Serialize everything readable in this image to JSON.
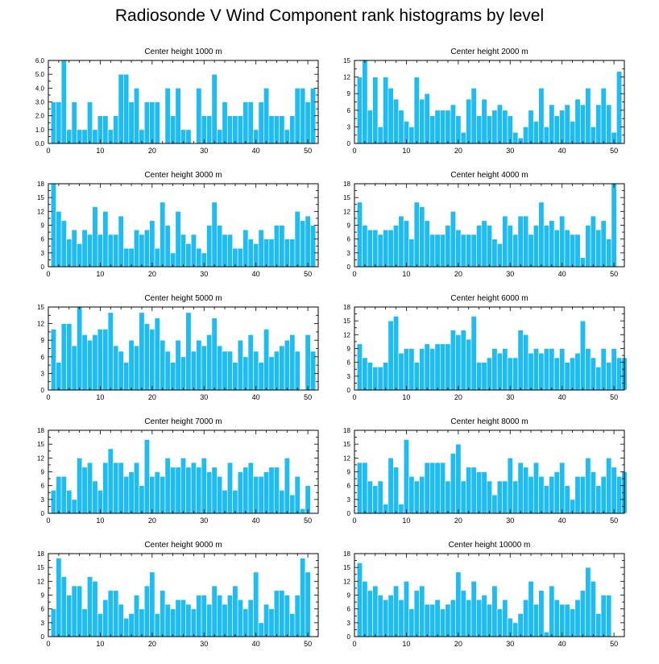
{
  "title": "Radiosonde V Wind Component rank histograms by level",
  "colors": {
    "bar": "#1ebcf0",
    "axis": "#000000"
  },
  "chart_data": [
    {
      "type": "bar",
      "title": "Center height 1000 m",
      "ylim": [
        0,
        6.0
      ],
      "yticks": [
        "0.0",
        "1.0",
        "2.0",
        "3.0",
        "4.0",
        "5.0",
        "6.0"
      ],
      "ytick_values": [
        0,
        1,
        2,
        3,
        4,
        5,
        6
      ],
      "xticks": [
        "0",
        "10",
        "20",
        "30",
        "40",
        "50"
      ],
      "xlim": [
        0,
        52
      ],
      "values": [
        3,
        3,
        6,
        1,
        3,
        1,
        1,
        3,
        1,
        2,
        2,
        1,
        2,
        5,
        5,
        3,
        4,
        1,
        3,
        3,
        3,
        0,
        4,
        2,
        4,
        1,
        1,
        0,
        4,
        2,
        2,
        5,
        1,
        3,
        2,
        2,
        2,
        3,
        3,
        1,
        3,
        4,
        2,
        2,
        2,
        1,
        2,
        4,
        4,
        3,
        4
      ]
    },
    {
      "type": "bar",
      "title": "Center height 2000 m",
      "ylim": [
        0,
        15
      ],
      "yticks": [
        "0",
        "3",
        "6",
        "9",
        "12",
        "15"
      ],
      "ytick_values": [
        0,
        3,
        6,
        9,
        12,
        15
      ],
      "xticks": [
        "0",
        "10",
        "20",
        "30",
        "40",
        "50"
      ],
      "xlim": [
        0,
        52
      ],
      "values": [
        12,
        15,
        6,
        12,
        3,
        12,
        10,
        8,
        6,
        4,
        3,
        12,
        8,
        9,
        5,
        6,
        6,
        6,
        7,
        5,
        2,
        8,
        10,
        5,
        8,
        5,
        6,
        7,
        6,
        5,
        2,
        1,
        3,
        6,
        4,
        10,
        3,
        7,
        5,
        6,
        7,
        4,
        8,
        7,
        10,
        3,
        7,
        10,
        7,
        2,
        13
      ]
    },
    {
      "type": "bar",
      "title": "Center height 3000 m",
      "ylim": [
        0,
        18
      ],
      "yticks": [
        "0",
        "3",
        "6",
        "9",
        "12",
        "15",
        "18"
      ],
      "ytick_values": [
        0,
        3,
        6,
        9,
        12,
        15,
        18
      ],
      "xticks": [
        "0",
        "10",
        "20",
        "30",
        "40",
        "50"
      ],
      "xlim": [
        0,
        52
      ],
      "values": [
        18,
        12,
        10,
        6,
        8,
        5,
        8,
        7,
        13,
        7,
        12,
        7,
        7,
        11,
        4,
        4,
        8,
        7,
        8,
        10,
        4,
        14,
        9,
        3,
        12,
        7,
        5,
        7,
        4,
        3,
        9,
        14,
        9,
        7,
        7,
        4,
        4,
        8,
        6,
        5,
        8,
        6,
        6,
        9,
        9,
        6,
        6,
        12,
        10,
        11,
        9
      ]
    },
    {
      "type": "bar",
      "title": "Center height 4000 m",
      "ylim": [
        0,
        18
      ],
      "yticks": [
        "0",
        "3",
        "6",
        "9",
        "12",
        "15",
        "18"
      ],
      "ytick_values": [
        0,
        3,
        6,
        9,
        12,
        15,
        18
      ],
      "xticks": [
        "0",
        "10",
        "20",
        "30",
        "40",
        "50"
      ],
      "xlim": [
        0,
        52
      ],
      "values": [
        14,
        9,
        8,
        8,
        7,
        8,
        8,
        9,
        11,
        10,
        6,
        14,
        13,
        10,
        7,
        7,
        7,
        9,
        12,
        8,
        7,
        7,
        7,
        9,
        10,
        9,
        6,
        5,
        11,
        9,
        7,
        11,
        11,
        7,
        9,
        14,
        9,
        10,
        8,
        11,
        8,
        7,
        7,
        2,
        9,
        11,
        8,
        10,
        6,
        18
      ]
    },
    {
      "type": "bar",
      "title": "Center height 5000 m",
      "ylim": [
        0,
        15
      ],
      "yticks": [
        "0",
        "3",
        "6",
        "9",
        "12",
        "15"
      ],
      "ytick_values": [
        0,
        3,
        6,
        9,
        12,
        15
      ],
      "xticks": [
        "0",
        "10",
        "20",
        "30",
        "40",
        "50"
      ],
      "xlim": [
        0,
        52
      ],
      "values": [
        11,
        5,
        12,
        12,
        8,
        15,
        10,
        9,
        10,
        11,
        11,
        14,
        8,
        7,
        5,
        9,
        8,
        14,
        12,
        11,
        13,
        9,
        7,
        5,
        9,
        6,
        14,
        7,
        9,
        8,
        10,
        13,
        8,
        7,
        7,
        5,
        9,
        6,
        10,
        7,
        5,
        11,
        6,
        7,
        8,
        9,
        10,
        7,
        0,
        10,
        7
      ]
    },
    {
      "type": "bar",
      "title": "Center height 6000 m",
      "ylim": [
        0,
        18
      ],
      "yticks": [
        "0",
        "3",
        "6",
        "9",
        "12",
        "15",
        "18"
      ],
      "ytick_values": [
        0,
        3,
        6,
        9,
        12,
        15,
        18
      ],
      "xticks": [
        "0",
        "10",
        "20",
        "30",
        "40",
        "50"
      ],
      "xlim": [
        0,
        52
      ],
      "values": [
        10,
        7,
        6,
        5,
        5,
        6,
        15,
        16,
        8,
        9,
        9,
        6,
        9,
        10,
        9,
        10,
        10,
        10,
        13,
        12,
        13,
        11,
        16,
        6,
        6,
        7,
        9,
        8,
        9,
        7,
        7,
        13,
        12,
        8,
        9,
        8,
        9,
        9,
        7,
        9,
        6,
        7,
        8,
        15,
        9,
        7,
        5,
        9,
        6,
        9,
        7,
        7
      ]
    },
    {
      "type": "bar",
      "title": "Center height 7000 m",
      "ylim": [
        0,
        18
      ],
      "yticks": [
        "0",
        "3",
        "6",
        "9",
        "12",
        "15",
        "18"
      ],
      "ytick_values": [
        0,
        3,
        6,
        9,
        12,
        15,
        18
      ],
      "xticks": [
        "0",
        "10",
        "20",
        "30",
        "40",
        "50"
      ],
      "xlim": [
        0,
        52
      ],
      "values": [
        5,
        8,
        8,
        5,
        3,
        12,
        10,
        11,
        7,
        5,
        11,
        14,
        11,
        11,
        8,
        9,
        11,
        6,
        16,
        8,
        9,
        8,
        12,
        10,
        10,
        12,
        10,
        11,
        10,
        12,
        9,
        10,
        8,
        5,
        11,
        5,
        9,
        10,
        11,
        8,
        8,
        9,
        10,
        10,
        5,
        12,
        4,
        8,
        1,
        6
      ]
    },
    {
      "type": "bar",
      "title": "Center height 8000 m",
      "ylim": [
        0,
        18
      ],
      "yticks": [
        "0",
        "3",
        "6",
        "9",
        "12",
        "15",
        "18"
      ],
      "ytick_values": [
        0,
        3,
        6,
        9,
        12,
        15,
        18
      ],
      "xticks": [
        "0",
        "10",
        "20",
        "30",
        "40",
        "50"
      ],
      "xlim": [
        0,
        52
      ],
      "values": [
        11,
        11,
        7,
        6,
        7,
        2,
        12,
        10,
        2,
        16,
        8,
        7,
        8,
        11,
        11,
        11,
        11,
        7,
        13,
        15,
        7,
        10,
        10,
        9,
        9,
        7,
        4,
        7,
        7,
        12,
        7,
        11,
        10,
        8,
        11,
        8,
        6,
        8,
        9,
        11,
        6,
        3,
        8,
        8,
        12,
        9,
        6,
        8,
        12,
        10,
        8,
        9
      ]
    },
    {
      "type": "bar",
      "title": "Center height 9000 m",
      "ylim": [
        0,
        18
      ],
      "yticks": [
        "0",
        "3",
        "6",
        "9",
        "12",
        "15",
        "18"
      ],
      "ytick_values": [
        0,
        3,
        6,
        9,
        12,
        15,
        18
      ],
      "xticks": [
        "0",
        "10",
        "20",
        "30",
        "40",
        "50"
      ],
      "xlim": [
        0,
        52
      ],
      "values": [
        6,
        17,
        13,
        9,
        11,
        11,
        6,
        13,
        12,
        5,
        8,
        10,
        10,
        7,
        4,
        5,
        9,
        6,
        11,
        14,
        5,
        10,
        7,
        6,
        8,
        8,
        7,
        6,
        9,
        9,
        7,
        11,
        9,
        7,
        9,
        11,
        8,
        6,
        8,
        14,
        3,
        7,
        6,
        10,
        10,
        9,
        5,
        9,
        17,
        14
      ]
    },
    {
      "type": "bar",
      "title": "Center height 10000 m",
      "ylim": [
        0,
        18
      ],
      "yticks": [
        "0",
        "3",
        "6",
        "9",
        "12",
        "15",
        "18"
      ],
      "ytick_values": [
        0,
        3,
        6,
        9,
        12,
        15,
        18
      ],
      "xticks": [
        "0",
        "10",
        "20",
        "30",
        "40",
        "50"
      ],
      "xlim": [
        0,
        52
      ],
      "values": [
        16,
        12,
        10,
        11,
        9,
        8,
        9,
        11,
        8,
        12,
        6,
        10,
        11,
        7,
        7,
        8,
        6,
        7,
        8,
        14,
        10,
        8,
        12,
        8,
        9,
        7,
        11,
        6,
        8,
        4,
        3,
        5,
        8,
        12,
        7,
        10,
        1,
        11,
        8,
        7,
        7,
        6,
        8,
        10,
        15,
        12,
        5,
        9,
        9
      ]
    }
  ]
}
